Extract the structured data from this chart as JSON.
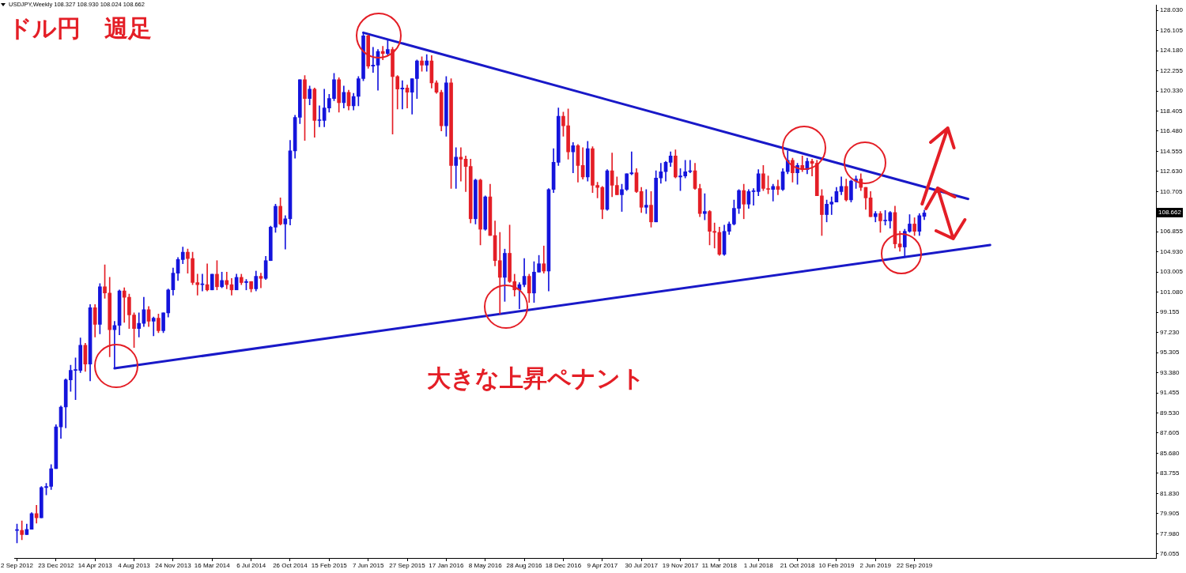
{
  "chart_data": {
    "type": "candlestick",
    "title": "ドル円　週足",
    "annotations": [
      "USDJPY,Weekly 108.327 108.930 108.024 108.662",
      "大きな上昇ペナント",
      {
        "text": "108.662",
        "y": 108.662
      }
    ],
    "x": [
      "2012-09-02",
      "2012-09-16",
      "2012-09-30",
      "2012-10-14",
      "2012-10-28",
      "2012-11-11",
      "2012-11-25",
      "2012-12-09",
      "2012-12-23",
      "2013-01-06",
      "2013-01-20",
      "2013-02-03",
      "2013-02-17",
      "2013-03-03",
      "2013-03-17",
      "2013-03-31",
      "2013-04-14",
      "2013-04-28",
      "2013-05-12",
      "2013-05-26",
      "2013-06-09",
      "2013-06-23",
      "2013-07-07",
      "2013-07-21",
      "2013-08-04",
      "2013-08-18",
      "2013-09-01",
      "2013-09-15",
      "2013-09-29",
      "2013-10-13",
      "2013-10-27",
      "2013-11-10",
      "2013-11-24",
      "2013-12-08",
      "2013-12-22",
      "2014-01-05",
      "2014-01-19",
      "2014-02-02",
      "2014-02-16",
      "2014-03-02",
      "2014-03-16",
      "2014-03-30",
      "2014-04-13",
      "2014-04-27",
      "2014-05-11",
      "2014-05-25",
      "2014-06-08",
      "2014-06-22",
      "2014-07-06",
      "2014-07-20",
      "2014-08-03",
      "2014-08-17",
      "2014-08-31",
      "2014-09-14",
      "2014-09-28",
      "2014-10-12",
      "2014-10-26",
      "2014-11-09",
      "2014-11-23",
      "2014-12-07",
      "2014-12-21",
      "2015-01-04",
      "2015-01-18",
      "2015-02-01",
      "2015-02-15",
      "2015-03-01",
      "2015-03-15",
      "2015-03-29",
      "2015-04-12",
      "2015-04-26",
      "2015-05-10",
      "2015-05-24",
      "2015-06-07",
      "2015-06-21",
      "2015-07-05",
      "2015-07-19",
      "2015-08-02",
      "2015-08-16",
      "2015-08-30",
      "2015-09-13",
      "2015-09-27",
      "2015-10-11",
      "2015-10-25",
      "2015-11-08",
      "2015-11-22",
      "2015-12-06",
      "2015-12-20",
      "2016-01-03",
      "2016-01-17",
      "2016-01-31",
      "2016-02-14",
      "2016-02-28",
      "2016-03-13",
      "2016-03-27",
      "2016-04-10",
      "2016-04-24",
      "2016-05-08",
      "2016-05-22",
      "2016-06-05",
      "2016-06-19",
      "2016-07-03",
      "2016-07-17",
      "2016-07-31",
      "2016-08-14",
      "2016-08-28",
      "2016-09-11",
      "2016-09-25",
      "2016-10-09",
      "2016-10-23",
      "2016-11-06",
      "2016-11-20",
      "2016-12-04",
      "2016-12-18",
      "2017-01-01",
      "2017-01-15",
      "2017-01-29",
      "2017-02-12",
      "2017-02-26",
      "2017-03-12",
      "2017-03-26",
      "2017-04-09",
      "2017-04-23",
      "2017-05-07",
      "2017-05-21",
      "2017-06-04",
      "2017-06-18",
      "2017-07-02",
      "2017-07-16",
      "2017-07-30",
      "2017-08-13",
      "2017-08-27",
      "2017-09-10",
      "2017-09-24",
      "2017-10-08",
      "2017-10-22",
      "2017-11-05",
      "2017-11-19",
      "2017-12-03",
      "2017-12-17",
      "2017-12-31",
      "2018-01-14",
      "2018-01-28",
      "2018-02-11",
      "2018-02-25",
      "2018-03-11",
      "2018-03-25",
      "2018-04-08",
      "2018-04-22",
      "2018-05-06",
      "2018-05-20",
      "2018-06-03",
      "2018-06-17",
      "2018-07-01",
      "2018-07-15",
      "2018-07-29",
      "2018-08-12",
      "2018-08-26",
      "2018-09-09",
      "2018-09-23",
      "2018-10-07",
      "2018-10-21",
      "2018-11-04",
      "2018-11-18",
      "2018-12-02",
      "2018-12-16",
      "2018-12-30",
      "2019-01-13",
      "2019-01-27",
      "2019-02-10",
      "2019-02-24",
      "2019-03-10",
      "2019-03-24",
      "2019-04-07",
      "2019-04-21",
      "2019-05-05",
      "2019-05-19",
      "2019-06-02",
      "2019-06-16",
      "2019-06-30",
      "2019-07-14",
      "2019-07-28",
      "2019-08-11",
      "2019-08-25",
      "2019-09-08",
      "2019-09-22",
      "2019-10-06",
      "2019-10-20"
    ],
    "ohlc": [
      [
        78.3,
        78.9,
        77.1,
        78.3
      ],
      [
        78.3,
        79.2,
        77.4,
        77.9
      ],
      [
        77.9,
        78.9,
        77.9,
        78.4
      ],
      [
        78.4,
        80.0,
        78.4,
        79.9
      ],
      [
        79.9,
        80.7,
        79.0,
        79.5
      ],
      [
        79.5,
        82.5,
        79.5,
        82.4
      ],
      [
        82.4,
        82.8,
        81.7,
        82.5
      ],
      [
        82.5,
        84.6,
        82.2,
        84.2
      ],
      [
        84.2,
        88.4,
        84.2,
        88.2
      ],
      [
        88.2,
        90.2,
        87.1,
        90.1
      ],
      [
        90.1,
        92.8,
        88.1,
        92.7
      ],
      [
        92.7,
        94.1,
        91.6,
        93.6
      ],
      [
        93.6,
        94.8,
        90.8,
        93.6
      ],
      [
        93.6,
        96.7,
        93.4,
        96.0
      ],
      [
        96.0,
        96.2,
        93.5,
        94.2
      ],
      [
        94.2,
        99.9,
        92.6,
        99.6
      ],
      [
        99.6,
        99.9,
        96.8,
        98.0
      ],
      [
        98.0,
        101.9,
        97.1,
        101.6
      ],
      [
        101.6,
        103.7,
        100.5,
        101.0
      ],
      [
        101.0,
        102.5,
        94.9,
        97.5
      ],
      [
        97.5,
        98.3,
        93.8,
        97.9
      ],
      [
        97.9,
        101.3,
        97.0,
        101.2
      ],
      [
        101.2,
        101.5,
        98.2,
        100.6
      ],
      [
        100.6,
        100.9,
        97.6,
        98.9
      ],
      [
        98.9,
        99.1,
        95.8,
        97.6
      ],
      [
        97.6,
        99.1,
        96.8,
        98.1
      ],
      [
        98.1,
        100.6,
        97.8,
        99.4
      ],
      [
        99.4,
        99.7,
        97.8,
        98.3
      ],
      [
        98.3,
        98.7,
        96.9,
        98.6
      ],
      [
        98.6,
        99.0,
        97.2,
        97.4
      ],
      [
        97.4,
        99.1,
        97.2,
        99.1
      ],
      [
        99.1,
        101.4,
        98.7,
        101.3
      ],
      [
        101.3,
        103.4,
        100.8,
        102.9
      ],
      [
        102.9,
        104.4,
        102.2,
        104.2
      ],
      [
        104.2,
        105.4,
        103.8,
        104.9
      ],
      [
        104.9,
        105.2,
        102.9,
        104.3
      ],
      [
        104.3,
        104.9,
        101.8,
        102.0
      ],
      [
        102.0,
        102.8,
        100.8,
        101.8
      ],
      [
        101.8,
        102.8,
        101.2,
        101.8
      ],
      [
        101.8,
        103.8,
        101.2,
        101.3
      ],
      [
        101.3,
        102.8,
        101.3,
        102.8
      ],
      [
        102.8,
        104.1,
        101.3,
        101.6
      ],
      [
        101.6,
        103.0,
        101.5,
        102.2
      ],
      [
        102.2,
        103.0,
        101.4,
        101.8
      ],
      [
        101.8,
        102.4,
        100.8,
        101.3
      ],
      [
        101.3,
        102.8,
        101.3,
        102.5
      ],
      [
        102.5,
        102.8,
        101.8,
        102.0
      ],
      [
        102.0,
        102.3,
        101.3,
        102.1
      ],
      [
        102.1,
        102.1,
        101.1,
        101.4
      ],
      [
        101.4,
        103.1,
        101.2,
        102.6
      ],
      [
        102.6,
        102.9,
        101.5,
        102.4
      ],
      [
        102.4,
        104.5,
        102.3,
        104.1
      ],
      [
        104.1,
        107.4,
        104.1,
        107.3
      ],
      [
        107.3,
        109.5,
        106.8,
        109.3
      ],
      [
        109.3,
        110.1,
        107.5,
        107.6
      ],
      [
        107.6,
        108.4,
        105.2,
        108.1
      ],
      [
        108.1,
        115.6,
        107.5,
        114.6
      ],
      [
        114.6,
        118.0,
        113.9,
        117.8
      ],
      [
        117.8,
        121.4,
        117.2,
        121.4
      ],
      [
        121.4,
        121.8,
        115.6,
        119.6
      ],
      [
        119.6,
        120.8,
        119.0,
        120.5
      ],
      [
        120.5,
        120.6,
        115.9,
        117.5
      ],
      [
        117.5,
        118.9,
        116.9,
        117.5
      ],
      [
        117.5,
        120.5,
        116.9,
        118.7
      ],
      [
        118.7,
        120.0,
        118.3,
        119.6
      ],
      [
        119.6,
        122.0,
        119.4,
        121.4
      ],
      [
        121.4,
        121.6,
        118.3,
        119.2
      ],
      [
        119.2,
        120.8,
        118.7,
        120.2
      ],
      [
        120.2,
        120.4,
        118.5,
        118.9
      ],
      [
        118.9,
        120.1,
        118.5,
        119.8
      ],
      [
        119.8,
        121.7,
        118.9,
        121.5
      ],
      [
        121.5,
        125.9,
        121.3,
        125.6
      ],
      [
        125.6,
        125.7,
        122.5,
        122.7
      ],
      [
        122.7,
        124.5,
        122.1,
        122.8
      ],
      [
        122.8,
        124.3,
        120.4,
        124.1
      ],
      [
        124.1,
        124.6,
        123.3,
        123.9
      ],
      [
        123.9,
        125.3,
        123.7,
        124.3
      ],
      [
        124.3,
        124.5,
        116.2,
        121.7
      ],
      [
        121.7,
        121.8,
        118.6,
        120.5
      ],
      [
        120.5,
        121.3,
        118.6,
        120.6
      ],
      [
        120.6,
        120.9,
        118.7,
        120.2
      ],
      [
        120.2,
        121.5,
        118.1,
        121.5
      ],
      [
        121.5,
        123.3,
        119.6,
        123.2
      ],
      [
        123.2,
        123.6,
        122.2,
        122.8
      ],
      [
        122.8,
        123.8,
        122.2,
        123.2
      ],
      [
        123.2,
        123.7,
        120.6,
        121.1
      ],
      [
        121.1,
        121.3,
        120.1,
        120.2
      ],
      [
        120.2,
        120.4,
        116.5,
        117.0
      ],
      [
        117.0,
        121.7,
        116.0,
        121.1
      ],
      [
        121.1,
        121.5,
        111.0,
        113.2
      ],
      [
        113.2,
        114.9,
        111.0,
        114.0
      ],
      [
        114.0,
        114.9,
        111.7,
        113.8
      ],
      [
        113.8,
        114.1,
        110.7,
        113.1
      ],
      [
        113.1,
        113.8,
        107.7,
        108.1
      ],
      [
        108.1,
        111.9,
        107.6,
        111.8
      ],
      [
        111.8,
        111.9,
        105.6,
        107.1
      ],
      [
        107.1,
        110.3,
        107.0,
        110.2
      ],
      [
        110.2,
        111.4,
        106.5,
        106.5
      ],
      [
        106.5,
        107.9,
        103.6,
        104.1
      ],
      [
        104.1,
        106.8,
        99.0,
        102.5
      ],
      [
        102.5,
        105.2,
        100.2,
        104.8
      ],
      [
        104.8,
        107.5,
        102.0,
        102.1
      ],
      [
        102.1,
        102.8,
        100.7,
        101.3
      ],
      [
        101.3,
        102.0,
        99.5,
        101.8
      ],
      [
        101.8,
        104.3,
        101.6,
        102.6
      ],
      [
        102.6,
        102.8,
        100.1,
        101.0
      ],
      [
        101.0,
        104.0,
        100.1,
        103.0
      ],
      [
        103.0,
        104.6,
        103.0,
        103.8
      ],
      [
        103.8,
        105.5,
        102.9,
        103.1
      ],
      [
        103.1,
        111.0,
        101.2,
        110.9
      ],
      [
        110.9,
        114.8,
        110.6,
        113.5
      ],
      [
        113.5,
        118.7,
        113.2,
        117.9
      ],
      [
        117.9,
        118.3,
        116.0,
        117.0
      ],
      [
        117.0,
        118.6,
        113.8,
        114.5
      ],
      [
        114.5,
        115.4,
        112.5,
        115.1
      ],
      [
        115.1,
        115.2,
        111.6,
        113.2
      ],
      [
        113.2,
        114.9,
        111.9,
        112.1
      ],
      [
        112.1,
        115.5,
        111.7,
        114.8
      ],
      [
        114.8,
        115.0,
        110.6,
        111.3
      ],
      [
        111.3,
        111.6,
        110.1,
        111.1
      ],
      [
        111.1,
        111.2,
        108.1,
        109.0
      ],
      [
        109.0,
        112.8,
        108.9,
        112.7
      ],
      [
        112.7,
        114.4,
        110.2,
        111.3
      ],
      [
        111.3,
        112.1,
        110.4,
        110.4
      ],
      [
        110.4,
        111.4,
        108.8,
        110.9
      ],
      [
        110.9,
        112.4,
        110.8,
        112.4
      ],
      [
        112.4,
        114.5,
        112.3,
        112.5
      ],
      [
        112.5,
        112.9,
        110.6,
        110.7
      ],
      [
        110.7,
        111.1,
        108.7,
        109.2
      ],
      [
        109.2,
        110.9,
        108.6,
        109.4
      ],
      [
        109.4,
        110.7,
        107.3,
        107.8
      ],
      [
        107.8,
        112.7,
        107.8,
        112.0
      ],
      [
        112.0,
        113.4,
        111.5,
        112.6
      ],
      [
        112.6,
        113.6,
        111.7,
        113.5
      ],
      [
        113.5,
        114.5,
        113.1,
        114.1
      ],
      [
        114.1,
        114.7,
        112.0,
        112.1
      ],
      [
        112.1,
        112.9,
        110.8,
        112.2
      ],
      [
        112.2,
        113.7,
        112.0,
        112.6
      ],
      [
        112.6,
        113.7,
        112.5,
        112.7
      ],
      [
        112.7,
        113.4,
        110.9,
        111.0
      ],
      [
        111.0,
        111.4,
        108.3,
        108.6
      ],
      [
        108.6,
        110.5,
        108.0,
        108.8
      ],
      [
        108.8,
        108.9,
        105.6,
        106.9
      ],
      [
        106.9,
        107.7,
        105.3,
        106.8
      ],
      [
        106.8,
        107.3,
        104.6,
        104.7
      ],
      [
        104.7,
        107.5,
        104.6,
        106.9
      ],
      [
        106.9,
        107.8,
        106.6,
        107.6
      ],
      [
        107.6,
        109.9,
        107.5,
        109.1
      ],
      [
        109.1,
        110.9,
        108.6,
        110.8
      ],
      [
        110.8,
        111.4,
        108.1,
        109.5
      ],
      [
        109.5,
        110.9,
        109.1,
        110.7
      ],
      [
        110.7,
        111.0,
        109.4,
        110.7
      ],
      [
        110.7,
        112.8,
        110.3,
        112.4
      ],
      [
        112.4,
        113.2,
        110.8,
        111.0
      ],
      [
        111.0,
        112.2,
        110.5,
        110.9
      ],
      [
        110.9,
        111.4,
        109.8,
        111.2
      ],
      [
        111.2,
        111.8,
        110.4,
        110.9
      ],
      [
        110.9,
        112.9,
        110.8,
        112.6
      ],
      [
        112.6,
        114.6,
        112.4,
        113.7
      ],
      [
        113.7,
        113.9,
        111.6,
        112.5
      ],
      [
        112.5,
        113.4,
        111.4,
        113.2
      ],
      [
        113.2,
        114.1,
        112.6,
        112.8
      ],
      [
        112.8,
        113.9,
        112.4,
        113.6
      ],
      [
        113.6,
        113.8,
        112.2,
        113.4
      ],
      [
        113.4,
        113.7,
        110.3,
        110.3
      ],
      [
        110.3,
        110.9,
        106.5,
        108.5
      ],
      [
        108.5,
        109.9,
        107.8,
        109.5
      ],
      [
        109.5,
        110.2,
        108.5,
        109.7
      ],
      [
        109.7,
        111.1,
        109.7,
        110.7
      ],
      [
        110.7,
        112.1,
        110.4,
        111.2
      ],
      [
        111.2,
        111.9,
        109.8,
        109.9
      ],
      [
        109.9,
        111.8,
        109.7,
        111.7
      ],
      [
        111.7,
        112.2,
        111.0,
        111.9
      ],
      [
        111.9,
        112.4,
        110.8,
        111.1
      ],
      [
        111.1,
        111.1,
        109.0,
        110.1
      ],
      [
        110.1,
        110.7,
        108.3,
        108.3
      ],
      [
        108.3,
        108.8,
        107.8,
        108.6
      ],
      [
        108.6,
        108.8,
        106.8,
        107.9
      ],
      [
        107.9,
        108.9,
        107.5,
        107.9
      ],
      [
        107.9,
        108.8,
        107.2,
        108.7
      ],
      [
        108.7,
        109.3,
        105.3,
        105.7
      ],
      [
        105.7,
        106.9,
        105.0,
        105.4
      ],
      [
        105.4,
        107.1,
        104.4,
        106.9
      ],
      [
        106.9,
        108.5,
        106.8,
        107.6
      ],
      [
        107.6,
        108.2,
        106.5,
        106.9
      ],
      [
        106.9,
        108.6,
        106.5,
        108.4
      ],
      [
        108.327,
        108.93,
        108.024,
        108.662
      ]
    ],
    "colors": [
      "#1414dc",
      "#e41e26",
      "#1414dc",
      "#1414dc",
      "#e41e26",
      "#1414dc",
      "#1414dc",
      "#1414dc",
      "#1414dc",
      "#1414dc",
      "#1414dc",
      "#1414dc",
      "#1414dc",
      "#1414dc",
      "#e41e26",
      "#1414dc",
      "#e41e26",
      "#1414dc",
      "#e41e26",
      "#e41e26",
      "#1414dc",
      "#1414dc",
      "#e41e26",
      "#e41e26",
      "#e41e26",
      "#1414dc",
      "#1414dc",
      "#e41e26",
      "#1414dc",
      "#e41e26",
      "#1414dc",
      "#1414dc",
      "#1414dc",
      "#1414dc",
      "#1414dc",
      "#e41e26",
      "#e41e26",
      "#e41e26",
      "#1414dc",
      "#e41e26",
      "#1414dc",
      "#e41e26",
      "#1414dc",
      "#e41e26",
      "#e41e26",
      "#1414dc",
      "#e41e26",
      "#1414dc",
      "#e41e26",
      "#1414dc",
      "#e41e26",
      "#1414dc",
      "#1414dc",
      "#1414dc",
      "#e41e26",
      "#1414dc",
      "#1414dc",
      "#1414dc",
      "#1414dc",
      "#e41e26",
      "#1414dc",
      "#e41e26",
      "#1414dc",
      "#1414dc",
      "#1414dc",
      "#1414dc",
      "#e41e26",
      "#1414dc",
      "#e41e26",
      "#1414dc",
      "#1414dc",
      "#1414dc",
      "#e41e26",
      "#1414dc",
      "#1414dc",
      "#e41e26",
      "#1414dc",
      "#e41e26",
      "#e41e26",
      "#1414dc",
      "#e41e26",
      "#1414dc",
      "#1414dc",
      "#e41e26",
      "#1414dc",
      "#e41e26",
      "#e41e26",
      "#e41e26",
      "#1414dc",
      "#e41e26",
      "#1414dc",
      "#e41e26",
      "#e41e26",
      "#e41e26",
      "#1414dc",
      "#e41e26",
      "#1414dc",
      "#e41e26",
      "#e41e26",
      "#e41e26",
      "#1414dc",
      "#e41e26",
      "#e41e26",
      "#1414dc",
      "#1414dc",
      "#e41e26",
      "#1414dc",
      "#1414dc",
      "#e41e26",
      "#1414dc",
      "#1414dc",
      "#1414dc",
      "#e41e26",
      "#e41e26",
      "#1414dc",
      "#e41e26",
      "#e41e26",
      "#1414dc",
      "#e41e26",
      "#e41e26",
      "#e41e26",
      "#1414dc",
      "#e41e26",
      "#e41e26",
      "#1414dc",
      "#1414dc",
      "#1414dc",
      "#e41e26",
      "#e41e26",
      "#1414dc",
      "#e41e26",
      "#1414dc",
      "#1414dc",
      "#1414dc",
      "#1414dc",
      "#e41e26",
      "#1414dc",
      "#1414dc",
      "#1414dc",
      "#e41e26",
      "#e41e26",
      "#1414dc",
      "#e41e26",
      "#e41e26",
      "#e41e26",
      "#1414dc",
      "#1414dc",
      "#1414dc",
      "#1414dc",
      "#e41e26",
      "#1414dc",
      "#1414dc",
      "#1414dc",
      "#e41e26",
      "#e41e26",
      "#1414dc",
      "#e41e26",
      "#1414dc",
      "#1414dc",
      "#e41e26",
      "#1414dc",
      "#e41e26",
      "#1414dc",
      "#e41e26",
      "#e41e26",
      "#e41e26",
      "#1414dc",
      "#1414dc",
      "#1414dc",
      "#1414dc",
      "#e41e26",
      "#1414dc",
      "#1414dc",
      "#e41e26",
      "#e41e26",
      "#e41e26",
      "#1414dc",
      "#e41e26",
      "#1414dc",
      "#1414dc",
      "#e41e26",
      "#e41e26",
      "#1414dc",
      "#1414dc",
      "#e41e26",
      "#1414dc",
      "#1414dc"
    ],
    "series": [
      {
        "type": "line",
        "color": "#1919c8",
        "x": [
          "2015-05-24",
          "2020-02-23"
        ],
        "values": [
          125.9,
          110.0
        ]
      },
      {
        "type": "line",
        "color": "#1919c8",
        "x": [
          "2013-06-09",
          "2020-04-26"
        ],
        "values": [
          93.8,
          105.6
        ]
      }
    ],
    "xlim": [
      "2012-08-26",
      "2021-08-15"
    ],
    "xticks": [
      {
        "value": "2012-09-02",
        "label": "2 Sep 2012"
      },
      {
        "value": "2012-12-23",
        "label": "23 Dec 2012"
      },
      {
        "value": "2013-04-14",
        "label": "14 Apr 2013"
      },
      {
        "value": "2013-08-04",
        "label": "4 Aug 2013"
      },
      {
        "value": "2013-11-24",
        "label": "24 Nov 2013"
      },
      {
        "value": "2014-03-16",
        "label": "16 Mar 2014"
      },
      {
        "value": "2014-07-06",
        "label": "6 Jul 2014"
      },
      {
        "value": "2014-10-26",
        "label": "26 Oct 2014"
      },
      {
        "value": "2015-02-15",
        "label": "15 Feb 2015"
      },
      {
        "value": "2015-06-07",
        "label": "7 Jun 2015"
      },
      {
        "value": "2015-09-27",
        "label": "27 Sep 2015"
      },
      {
        "value": "2016-01-17",
        "label": "17 Jan 2016"
      },
      {
        "value": "2016-05-08",
        "label": "8 May 2016"
      },
      {
        "value": "2016-08-28",
        "label": "28 Aug 2016"
      },
      {
        "value": "2016-12-18",
        "label": "18 Dec 2016"
      },
      {
        "value": "2017-04-09",
        "label": "9 Apr 2017"
      },
      {
        "value": "2017-07-30",
        "label": "30 Jul 2017"
      },
      {
        "value": "2017-11-19",
        "label": "19 Nov 2017"
      },
      {
        "value": "2018-03-11",
        "label": "11 Mar 2018"
      },
      {
        "value": "2018-07-01",
        "label": "1 Jul 2018"
      },
      {
        "value": "2018-10-21",
        "label": "21 Oct 2018"
      },
      {
        "value": "2019-02-10",
        "label": "10 Feb 2019"
      },
      {
        "value": "2019-06-02",
        "label": "2 Jun 2019"
      },
      {
        "value": "2019-09-22",
        "label": "22 Sep 2019"
      }
    ],
    "ylim": [
      75.66,
      128.51
    ],
    "yticks": [
      76.055,
      {
        "value": 77.98,
        "label": "77.980"
      },
      79.905,
      {
        "value": 81.83,
        "label": "81.830"
      },
      83.755,
      {
        "value": 85.68,
        "label": "85.680"
      },
      87.605,
      {
        "value": 89.53,
        "label": "89.530"
      },
      91.455,
      {
        "value": 93.38,
        "label": "93.380"
      },
      95.305,
      {
        "value": 97.23,
        "label": "97.230"
      },
      99.155,
      {
        "value": 101.08,
        "label": "101.080"
      },
      103.005,
      {
        "value": 104.93,
        "label": "104.930"
      },
      106.855,
      110.705,
      {
        "value": 112.63,
        "label": "112.630"
      },
      114.555,
      {
        "value": 116.48,
        "label": "116.480"
      },
      118.405,
      {
        "value": 120.33,
        "label": "120.330"
      },
      122.255,
      {
        "value": 124.18,
        "label": "124.180"
      },
      126.105,
      {
        "value": 128.03,
        "label": "128.030"
      }
    ]
  }
}
